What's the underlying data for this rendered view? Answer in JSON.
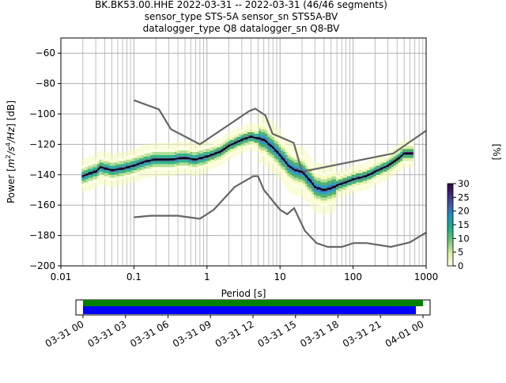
{
  "title_lines": [
    "BK.BK53.00.HHE   2022-03-31 -- 2022-03-31  (46/46 segments)",
    "sensor_type STS-5A sensor_sn STS5A-BV",
    "datalogger_type Q8 datalogger_sn Q8-BV"
  ],
  "chart_data": [
    {
      "type": "heatmap",
      "name": "ppsd",
      "xlabel": "Period [s]",
      "ylabel": "Power [m²/s⁴/Hz] [dB]",
      "ylabel_parts": {
        "main": "Power [",
        "unit_m": "m",
        "unit_s": "/s",
        "unit_hz": "/Hz",
        "close": "] [dB]",
        "sup2": "2",
        "sup4": "4"
      },
      "x_scale": "log",
      "xlim": [
        0.01,
        1000
      ],
      "ylim": [
        -200,
        -50
      ],
      "x_ticks": [
        0.01,
        0.1,
        1,
        10,
        100,
        1000
      ],
      "x_tick_labels": [
        "0.01",
        "0.1",
        "1",
        "10",
        "100",
        "1000"
      ],
      "y_ticks": [
        -60,
        -80,
        -100,
        -120,
        -140,
        -160,
        -180,
        -200
      ],
      "y_tick_labels": [
        "−60",
        "−80",
        "−100",
        "−120",
        "−140",
        "−160",
        "−180",
        "−200"
      ],
      "grid": true,
      "noise_models": {
        "high": [
          [
            0.1,
            -91
          ],
          [
            0.22,
            -97
          ],
          [
            0.32,
            -110
          ],
          [
            0.8,
            -120
          ],
          [
            3.8,
            -98
          ],
          [
            4.6,
            -96.5
          ],
          [
            6.3,
            -101
          ],
          [
            7.9,
            -113
          ],
          [
            15.4,
            -119
          ],
          [
            20,
            -138
          ],
          [
            354.8,
            -126
          ],
          [
            1000,
            -111
          ]
        ],
        "low": [
          [
            0.1,
            -168
          ],
          [
            0.17,
            -167
          ],
          [
            0.4,
            -167
          ],
          [
            0.8,
            -169
          ],
          [
            1.24,
            -163
          ],
          [
            2.4,
            -148
          ],
          [
            4.3,
            -141
          ],
          [
            5.0,
            -141
          ],
          [
            6.0,
            -150
          ],
          [
            10,
            -163
          ],
          [
            12.5,
            -166
          ],
          [
            15.6,
            -162
          ],
          [
            21.9,
            -177
          ],
          [
            31.6,
            -185
          ],
          [
            45,
            -187.5
          ],
          [
            70,
            -187.5
          ],
          [
            101,
            -185
          ],
          [
            154,
            -185
          ],
          [
            328,
            -187.5
          ],
          [
            600,
            -184.5
          ],
          [
            1000,
            -178
          ]
        ]
      },
      "mode_curve": [
        [
          0.02,
          -141
        ],
        [
          0.025,
          -139
        ],
        [
          0.03,
          -138
        ],
        [
          0.035,
          -135
        ],
        [
          0.05,
          -137
        ],
        [
          0.07,
          -136
        ],
        [
          0.1,
          -134
        ],
        [
          0.15,
          -131
        ],
        [
          0.2,
          -130
        ],
        [
          0.3,
          -130
        ],
        [
          0.5,
          -129
        ],
        [
          0.7,
          -130
        ],
        [
          1.0,
          -128
        ],
        [
          1.5,
          -125
        ],
        [
          2.0,
          -121
        ],
        [
          3.0,
          -117
        ],
        [
          4.0,
          -115
        ],
        [
          5.0,
          -116
        ],
        [
          6.0,
          -117
        ],
        [
          8.0,
          -122
        ],
        [
          10.0,
          -127
        ],
        [
          13.0,
          -134
        ],
        [
          16.0,
          -137
        ],
        [
          20.0,
          -138
        ],
        [
          25.0,
          -143
        ],
        [
          30.0,
          -148
        ],
        [
          40.0,
          -150
        ],
        [
          50.0,
          -149
        ],
        [
          60.0,
          -147
        ],
        [
          80.0,
          -145
        ],
        [
          100.0,
          -143
        ],
        [
          150.0,
          -141
        ],
        [
          200.0,
          -138
        ],
        [
          300.0,
          -134
        ],
        [
          400.0,
          -130
        ],
        [
          500.0,
          -126
        ],
        [
          650.0,
          -126
        ]
      ],
      "colorbar": {
        "label": "[%]",
        "range": [
          0,
          30
        ],
        "ticks": [
          0,
          5,
          10,
          15,
          20,
          25,
          30
        ],
        "tick_labels": [
          "0",
          "5",
          "10",
          "15",
          "20",
          "25",
          "30"
        ]
      },
      "colors": {
        "mode_curve": "#000000",
        "noise_model": "#666666",
        "grid": "#b0b0b0"
      }
    },
    {
      "type": "timeline",
      "name": "data-coverage",
      "x_tick_labels": [
        "03-31 00",
        "03-31 03",
        "03-31 06",
        "03-31 09",
        "03-31 12",
        "03-31 15",
        "03-31 18",
        "03-31 21",
        "04-01 00"
      ],
      "x_range_hours": [
        -0.5,
        24.5
      ],
      "bars": [
        {
          "name": "used",
          "start_hour": 0,
          "end_hour": 24,
          "color": "#008000"
        },
        {
          "name": "available",
          "start_hour": 0,
          "end_hour": 23.5,
          "color": "#0000ff"
        }
      ]
    }
  ]
}
